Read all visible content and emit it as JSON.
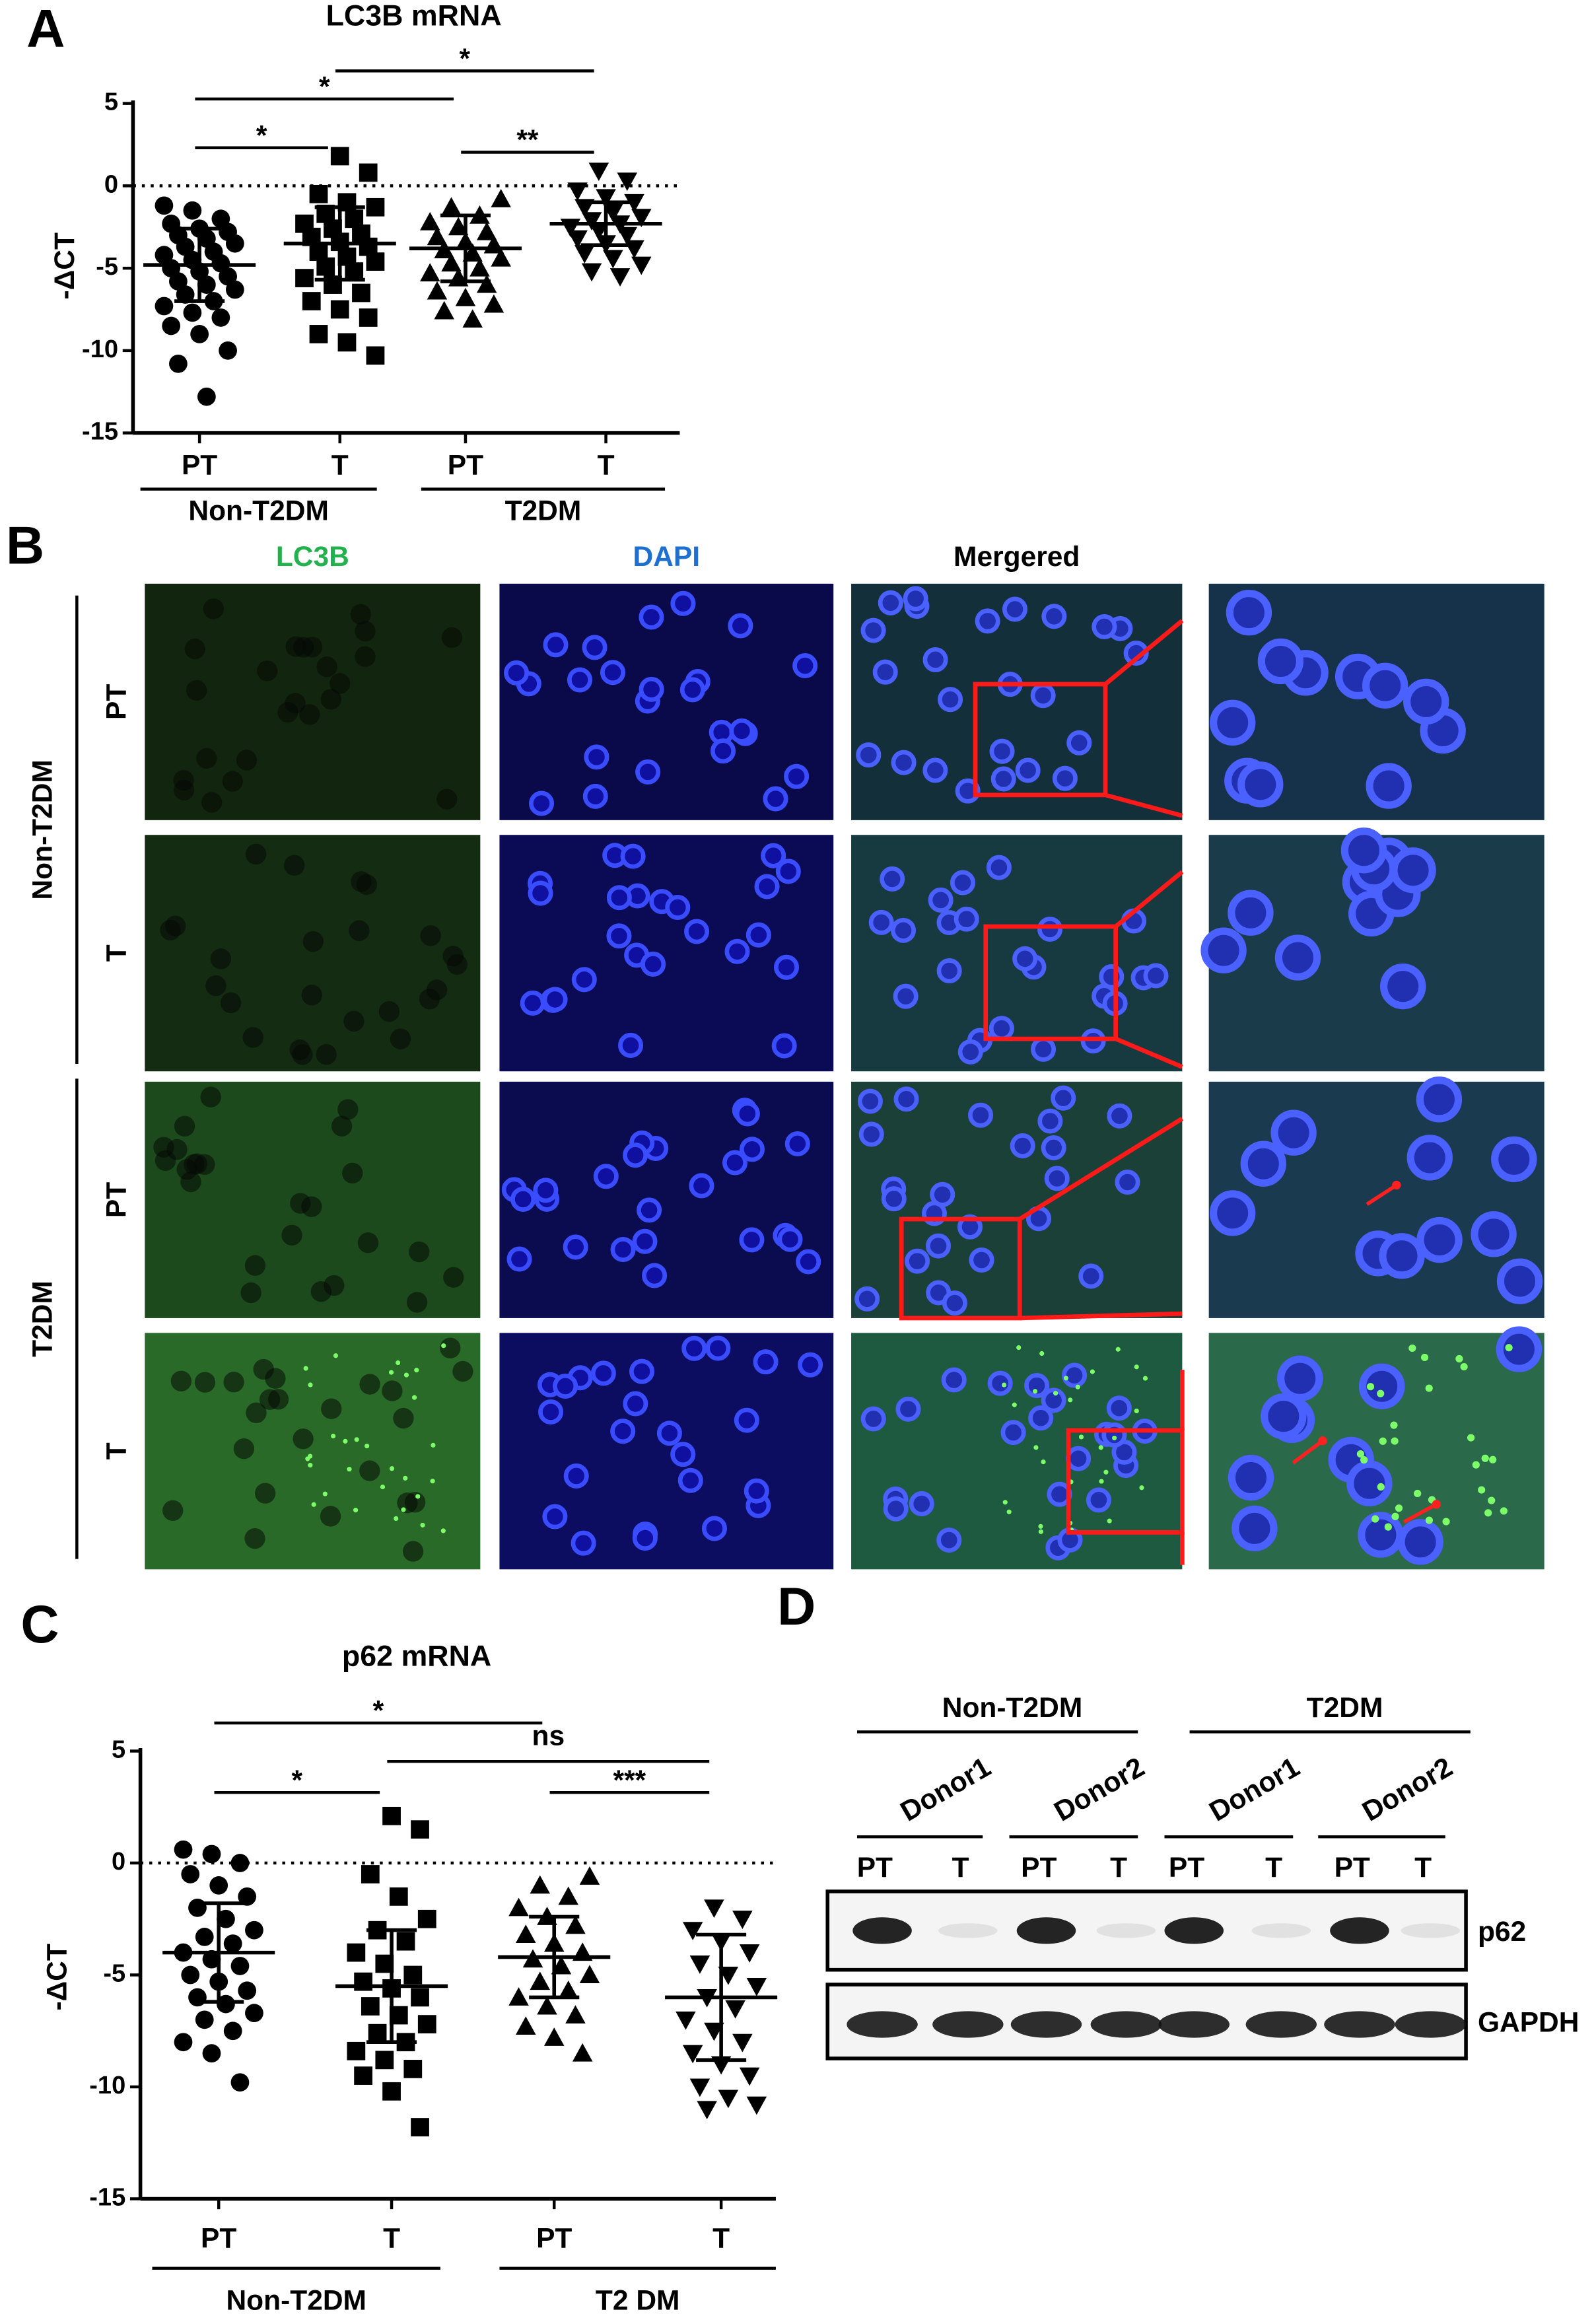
{
  "panels": [
    "A",
    "B",
    "C",
    "D"
  ],
  "chart_data": [
    {
      "type": "strip",
      "title": "LC3B mRNA",
      "ylabel": "-ΔCT",
      "categories": [
        "PT",
        "T",
        "PT",
        "T"
      ],
      "groups": [
        "Non-T2DM",
        "T2DM"
      ],
      "ylim": [
        -15,
        5
      ],
      "yticks": [
        5,
        0,
        -5,
        -10,
        -15
      ],
      "hline": 0,
      "markers": [
        "circle",
        "square",
        "triangle",
        "triangle-down"
      ],
      "color": "#000000",
      "points": [
        [
          -1.2,
          -1.5,
          -2,
          -2.3,
          -2.6,
          -2.8,
          -3,
          -3.2,
          -3.5,
          -3.7,
          -4,
          -4.2,
          -4.5,
          -4.7,
          -5,
          -5.2,
          -5.5,
          -5.8,
          -6,
          -6.3,
          -6.6,
          -7,
          -7.3,
          -7.7,
          -8,
          -8.5,
          -9,
          -10,
          -10.8,
          -12.8
        ],
        [
          1.8,
          0.8,
          -0.5,
          -1,
          -1.3,
          -1.7,
          -2,
          -2.3,
          -2.6,
          -2.9,
          -3.1,
          -3.4,
          -3.7,
          -4,
          -4.3,
          -4.6,
          -4.9,
          -5.2,
          -5.6,
          -6,
          -6.5,
          -7,
          -7.5,
          -8,
          -9,
          -9.5,
          -10.3
        ],
        [
          -0.8,
          -1.3,
          -1.8,
          -2.2,
          -2.5,
          -2.8,
          -3.1,
          -3.4,
          -3.6,
          -3.9,
          -4.1,
          -4.4,
          -4.7,
          -5,
          -5.3,
          -5.6,
          -6,
          -6.4,
          -6.8,
          -7.2,
          -7.6,
          -8.1
        ],
        [
          0.9,
          0.3,
          -0.3,
          -0.7,
          -1,
          -1.3,
          -1.6,
          -1.9,
          -2.1,
          -2.3,
          -2.5,
          -2.7,
          -3,
          -3.2,
          -3.5,
          -3.8,
          -4.1,
          -4.4,
          -4.8,
          -5.2,
          -5.5
        ]
      ],
      "means": [
        -4.8,
        -3.5,
        -3.8,
        -2.3
      ],
      "sd": [
        2.2,
        2.2,
        2.0,
        1.3
      ],
      "significance": [
        {
          "from": 0,
          "to": 1,
          "label": "*"
        },
        {
          "from": 0,
          "to": 2,
          "label": "*"
        },
        {
          "from": 1,
          "to": 3,
          "label": "*"
        },
        {
          "from": 2,
          "to": 3,
          "label": "**"
        }
      ]
    },
    {
      "type": "strip",
      "title": "p62 mRNA",
      "ylabel": "-ΔCT",
      "categories": [
        "PT",
        "T",
        "PT",
        "T"
      ],
      "groups": [
        "Non-T2DM",
        "T2 DM"
      ],
      "ylim": [
        -15,
        5
      ],
      "yticks": [
        5,
        0,
        -5,
        -10,
        -15
      ],
      "hline": 0,
      "markers": [
        "circle",
        "square",
        "triangle",
        "triangle-down"
      ],
      "color": "#000000",
      "points": [
        [
          0.6,
          0.4,
          0,
          -0.5,
          -1,
          -1.5,
          -2,
          -2.5,
          -3,
          -3.3,
          -3.6,
          -4,
          -4.3,
          -4.6,
          -5,
          -5.3,
          -5.7,
          -6,
          -6.3,
          -6.7,
          -7,
          -7.5,
          -8,
          -8.5,
          -9.8
        ],
        [
          2.1,
          1.5,
          -0.5,
          -1.5,
          -2.5,
          -3,
          -3.5,
          -4,
          -4.5,
          -5,
          -5.3,
          -5.6,
          -6,
          -6.4,
          -6.8,
          -7.2,
          -7.6,
          -8,
          -8.4,
          -8.8,
          -9.2,
          -9.5,
          -10.2,
          -11.8
        ],
        [
          -0.6,
          -1,
          -1.5,
          -2,
          -2.4,
          -2.8,
          -3.2,
          -3.6,
          -4,
          -4.3,
          -4.6,
          -5,
          -5.3,
          -5.7,
          -6,
          -6.4,
          -6.8,
          -7.3,
          -7.8,
          -8.5
        ],
        [
          -2,
          -2.5,
          -3,
          -3.5,
          -4,
          -4.5,
          -5,
          -5.5,
          -6,
          -6.5,
          -7,
          -7.5,
          -8,
          -8.5,
          -9,
          -9.5,
          -10,
          -10.5,
          -10.8,
          -11
        ]
      ],
      "means": [
        -4,
        -5.5,
        -4.2,
        -6
      ],
      "sd": [
        2.2,
        2.5,
        1.8,
        2.8
      ],
      "significance": [
        {
          "from": 0,
          "to": 1,
          "label": "*"
        },
        {
          "from": 0,
          "to": 2,
          "label": "*"
        },
        {
          "from": 1,
          "to": 3,
          "label": "ns"
        },
        {
          "from": 2,
          "to": 3,
          "label": "***"
        }
      ]
    }
  ],
  "panel_b": {
    "columns": [
      "LC3B",
      "DAPI",
      "Mergered"
    ],
    "groups": [
      "Non-T2DM",
      "T2DM"
    ],
    "rows": [
      "PT",
      "T",
      "PT",
      "T"
    ]
  },
  "panel_d": {
    "groups": [
      "Non-T2DM",
      "T2DM"
    ],
    "donors": [
      "Donor1",
      "Donor2",
      "Donor1",
      "Donor2"
    ],
    "lanes": [
      "PT",
      "T",
      "PT",
      "T",
      "PT",
      "T",
      "PT",
      "T"
    ],
    "proteins": [
      "p62",
      "GAPDH"
    ]
  }
}
